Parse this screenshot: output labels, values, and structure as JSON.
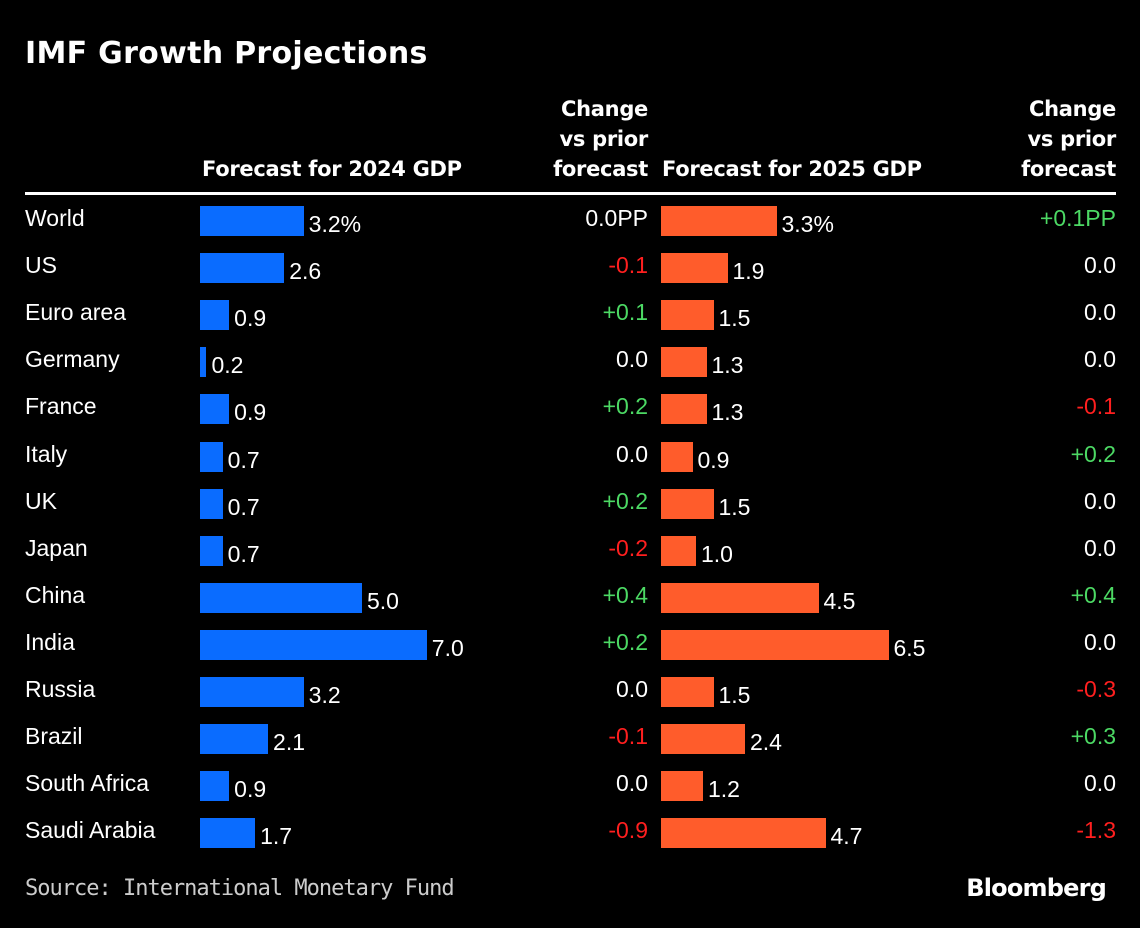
{
  "chart_data": {
    "type": "bar",
    "title": "IMF Growth Projections",
    "columns": {
      "forecast_2024": "Forecast for 2024 GDP",
      "change_2024": [
        "Change",
        "vs prior",
        "forecast"
      ],
      "forecast_2025": "Forecast for 2025 GDP",
      "change_2025": [
        "Change",
        "vs prior",
        "forecast"
      ]
    },
    "categories": [
      "World",
      "US",
      "Euro area",
      "Germany",
      "France",
      "Italy",
      "UK",
      "Japan",
      "China",
      "India",
      "Russia",
      "Brazil",
      "South Africa",
      "Saudi Arabia"
    ],
    "series": [
      {
        "name": "Forecast for 2024 GDP",
        "values": [
          3.2,
          2.6,
          0.9,
          0.2,
          0.9,
          0.7,
          0.7,
          0.7,
          5.0,
          7.0,
          3.2,
          2.1,
          0.9,
          1.7
        ],
        "color": "#0a6cff"
      },
      {
        "name": "Forecast for 2025 GDP",
        "values": [
          3.3,
          1.9,
          1.5,
          1.3,
          1.3,
          0.9,
          1.5,
          1.0,
          4.5,
          6.5,
          1.5,
          2.4,
          1.2,
          4.7
        ],
        "color": "#ff5c2b"
      }
    ],
    "value_labels_2024": [
      "3.2%",
      "2.6",
      "0.9",
      "0.2",
      "0.9",
      "0.7",
      "0.7",
      "0.7",
      "5.0",
      "7.0",
      "3.2",
      "2.1",
      "0.9",
      "1.7"
    ],
    "value_labels_2025": [
      "3.3%",
      "1.9",
      "1.5",
      "1.3",
      "1.3",
      "0.9",
      "1.5",
      "1.0",
      "4.5",
      "6.5",
      "1.5",
      "2.4",
      "1.2",
      "4.7"
    ],
    "change_2024": [
      "0.0PP",
      "-0.1",
      "+0.1",
      "0.0",
      "+0.2",
      "0.0",
      "+0.2",
      "-0.2",
      "+0.4",
      "+0.2",
      "0.0",
      "-0.1",
      "0.0",
      "-0.9"
    ],
    "change_2025": [
      "+0.1PP",
      "0.0",
      "0.0",
      "0.0",
      "-0.1",
      "+0.2",
      "0.0",
      "0.0",
      "+0.4",
      "0.0",
      "-0.3",
      "+0.3",
      "0.0",
      "-1.3"
    ],
    "colors": {
      "positive": "#4cd964",
      "negative": "#ff1f1f",
      "neutral": "#ffffff"
    }
  },
  "footer": {
    "source": "Source: International Monetary Fund",
    "brand": "Bloomberg"
  }
}
